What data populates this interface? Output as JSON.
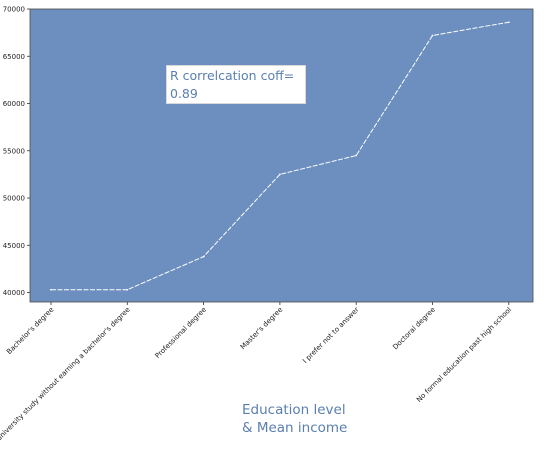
{
  "chart_data": {
    "type": "line",
    "categories": [
      "Bachelor's degree",
      "Some college/university study without earning a bachelor's degree",
      "Professional degree",
      "Master's degree",
      "I prefer not to answer",
      "Doctoral degree",
      "No formal education past high school"
    ],
    "values": [
      40300,
      40300,
      43800,
      52500,
      54500,
      67200,
      68600
    ],
    "ylim": [
      39000,
      70000
    ],
    "yticks": [
      40000,
      45000,
      50000,
      55000,
      60000,
      65000,
      70000
    ],
    "xlabel": "Education level\n& Mean income",
    "annotation": "R correlcation coff=\n0.89",
    "grid": false,
    "legend": "none",
    "colors": {
      "plot_background": "#6d8fbf",
      "line": "#ffffff",
      "label_text": "#5a7fb0"
    }
  }
}
